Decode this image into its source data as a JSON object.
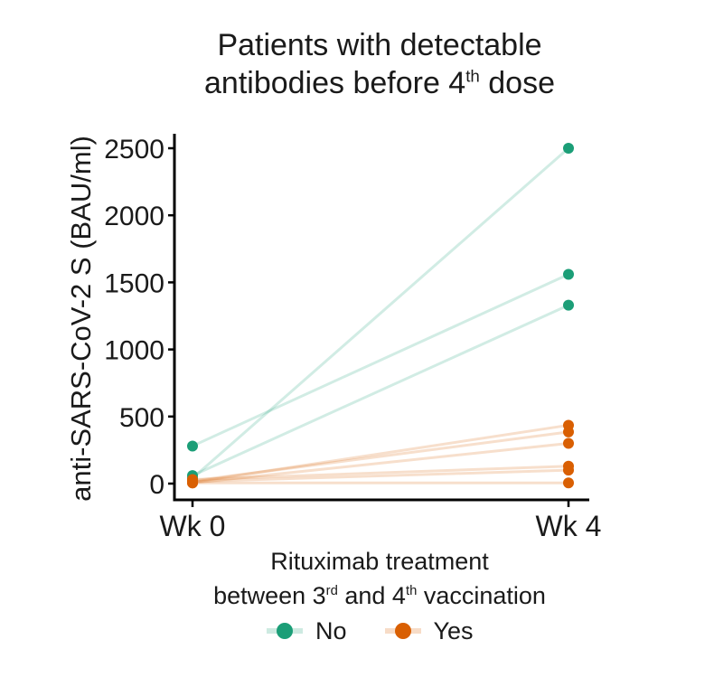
{
  "chart_data": {
    "type": "line",
    "title": {
      "line1": "Patients with detectable",
      "line2_before": "antibodies before 4",
      "line2_sup": "th",
      "line2_after": " dose"
    },
    "ylabel": "anti-SARS-CoV-2 S (BAU/ml)",
    "xlabel": "",
    "categories": [
      "Wk 0",
      "Wk 4"
    ],
    "ylim": [
      -120,
      2620
    ],
    "yticks": [
      0,
      500,
      1000,
      1500,
      2000,
      2500
    ],
    "ytick_labels": [
      "0",
      "500",
      "1000",
      "1500",
      "2000",
      "2500"
    ],
    "legend": {
      "title_line1": "Rituximab treatment",
      "title_line2_parts": [
        "between 3",
        "rd",
        " and 4",
        "th",
        " vaccination"
      ],
      "placement": "bottom",
      "entries": [
        {
          "name": "No",
          "color": "#1b9e77"
        },
        {
          "name": "Yes",
          "color": "#d95f02"
        }
      ]
    },
    "series": [
      {
        "group": "No",
        "values": [
          40,
          2500
        ]
      },
      {
        "group": "No",
        "values": [
          280,
          1560
        ]
      },
      {
        "group": "No",
        "values": [
          60,
          1330
        ]
      },
      {
        "group": "Yes",
        "values": [
          10,
          435
        ]
      },
      {
        "group": "Yes",
        "values": [
          20,
          385
        ]
      },
      {
        "group": "Yes",
        "values": [
          5,
          300
        ]
      },
      {
        "group": "Yes",
        "values": [
          30,
          130
        ]
      },
      {
        "group": "Yes",
        "values": [
          15,
          100
        ]
      },
      {
        "group": "Yes",
        "values": [
          5,
          5
        ]
      }
    ]
  }
}
